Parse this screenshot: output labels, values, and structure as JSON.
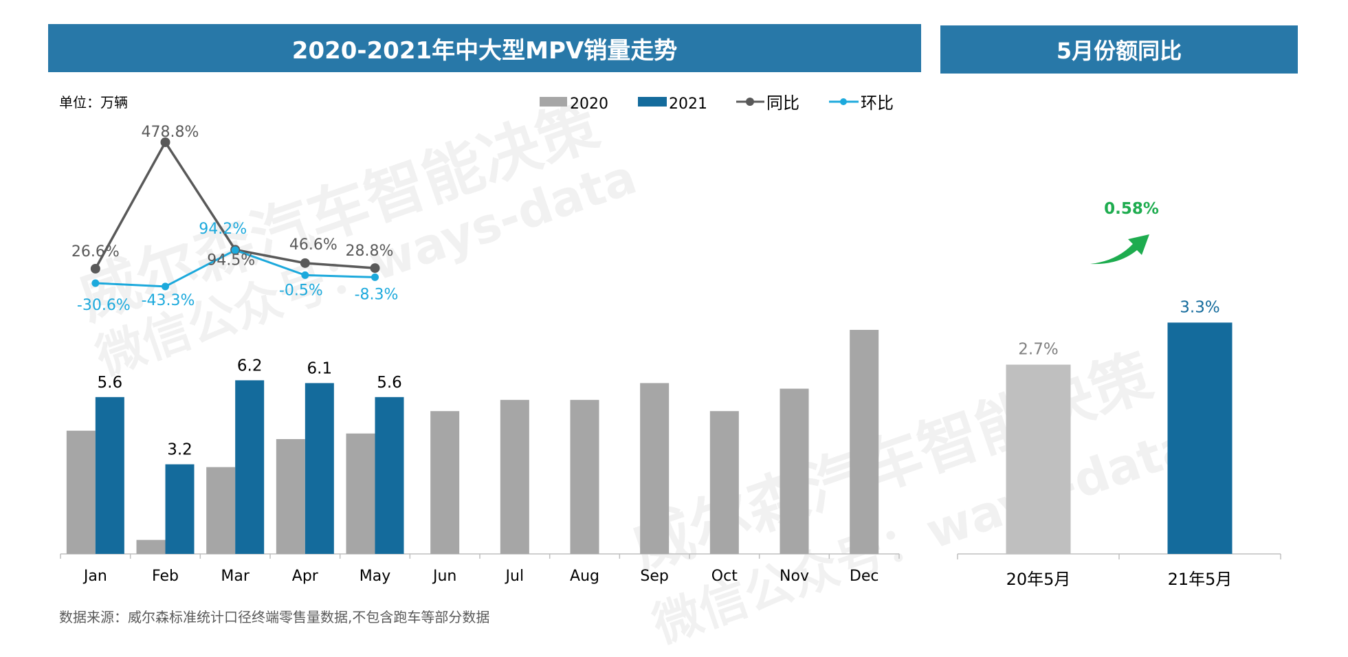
{
  "title_left": "2020-2021年中大型MPV销量走势",
  "title_right": "5月份额同比",
  "unit_label": "单位：万辆",
  "legend": {
    "s2020": "2020",
    "s2021": "2021",
    "yoy": "同比",
    "mom": "环比"
  },
  "source_note": "数据来源：威尔森标准统计口径终端零售量数据,不包含跑车等部分数据",
  "watermark": {
    "line1": "威尔森汽车智能决策",
    "line2": "微信公众号：ways-data"
  },
  "colors": {
    "banner": "#2878a8",
    "s2020": "#a6a6a6",
    "s2021": "#146b9c",
    "yoy": "#595959",
    "mom": "#1ca9dc",
    "bar2020_right": "#bfbfbf",
    "arrow": "#1eac4f"
  },
  "chart_data": [
    {
      "type": "bar",
      "categories": [
        "Jan",
        "Feb",
        "Mar",
        "Apr",
        "May",
        "Jun",
        "Jul",
        "Aug",
        "Sep",
        "Oct",
        "Nov",
        "Dec"
      ],
      "series": [
        {
          "name": "2020",
          "values": [
            4.4,
            0.5,
            3.1,
            4.1,
            4.3,
            5.1,
            5.5,
            5.5,
            6.1,
            5.1,
            5.9,
            8.0
          ]
        },
        {
          "name": "2021",
          "values": [
            5.6,
            3.2,
            6.2,
            6.1,
            5.6,
            null,
            null,
            null,
            null,
            null,
            null,
            null
          ]
        }
      ],
      "data_labels_2021": [
        "5.6",
        "3.2",
        "6.2",
        "6.1",
        "5.6"
      ],
      "ylim": [
        0,
        8.2
      ],
      "xlabel": "",
      "ylabel": ""
    },
    {
      "type": "line",
      "categories": [
        "Jan",
        "Feb",
        "Mar",
        "Apr",
        "May"
      ],
      "series": [
        {
          "name": "同比",
          "values": [
            26.6,
            478.8,
            94.5,
            46.6,
            28.8
          ],
          "labels": [
            "26.6%",
            "478.8%",
            "94.5%",
            "46.6%",
            "28.8%"
          ]
        },
        {
          "name": "环比",
          "values": [
            -30.6,
            -43.3,
            94.2,
            -0.5,
            -8.3
          ],
          "labels": [
            "-30.6%",
            "-43.3%",
            "94.2%",
            "-0.5%",
            "-8.3%"
          ]
        }
      ]
    },
    {
      "type": "bar",
      "categories": [
        "20年5月",
        "21年5月"
      ],
      "values": [
        2.7,
        3.3
      ],
      "labels": [
        "2.7%",
        "3.3%"
      ],
      "ylim": [
        0,
        4
      ],
      "annotation": "0.58%"
    }
  ]
}
